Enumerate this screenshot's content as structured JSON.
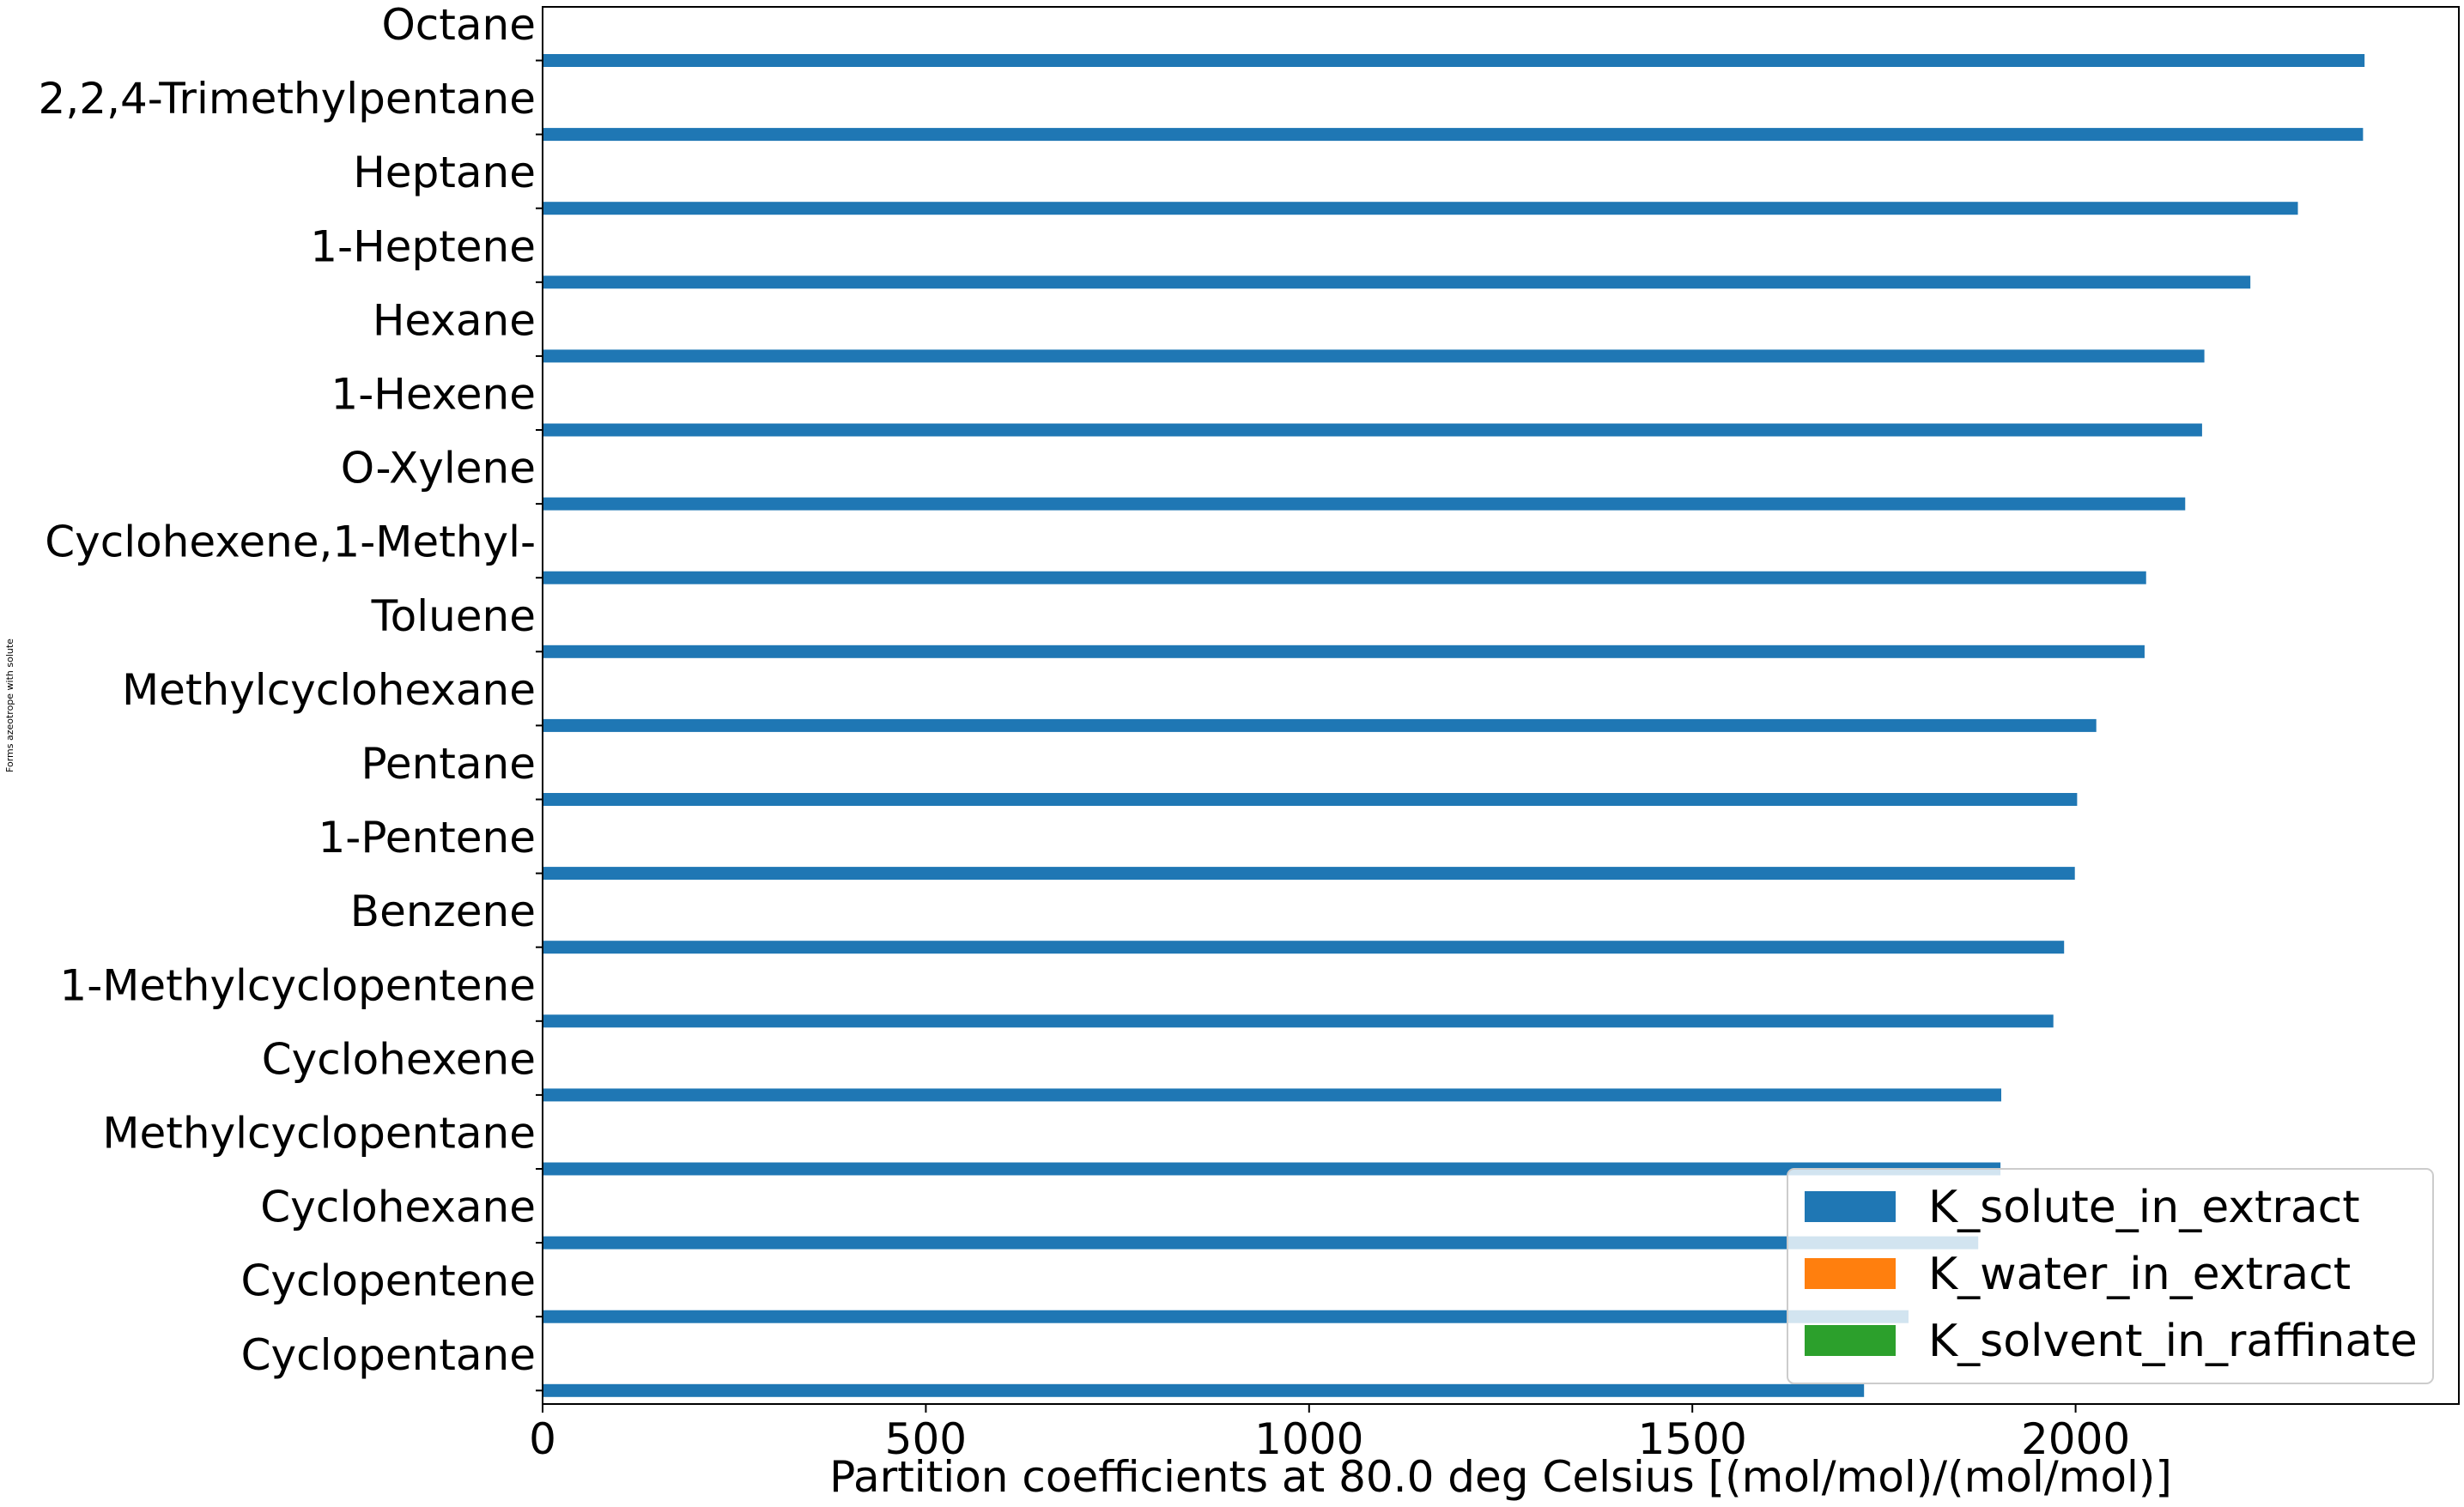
{
  "chart_data": {
    "type": "bar",
    "orientation": "horizontal",
    "title": "",
    "xlabel": "Partition coefficients at 80.0 deg Celsius [(mol/mol)/(mol/mol)]",
    "ylabel": "Forms azeotrope with solute",
    "xlim": [
      0,
      2500
    ],
    "xticks": [
      0,
      500,
      1000,
      1500,
      2000
    ],
    "grid": false,
    "legend_position": "lower-right",
    "categories": [
      "Octane",
      "2,2,4-Trimethylpentane",
      "Heptane",
      "1-Heptene",
      "Hexane",
      "1-Hexene",
      "O-Xylene",
      "Cyclohexene,1-Methyl-",
      "Toluene",
      "Methylcyclohexane",
      "Pentane",
      "1-Pentene",
      "Benzene",
      "1-Methylcyclopentene",
      "Cyclohexene",
      "Methylcyclopentane",
      "Cyclohexane",
      "Cyclopentene",
      "Cyclopentane"
    ],
    "series": [
      {
        "name": "K_solute_in_extract",
        "color": "#1f77b4",
        "values": [
          2377,
          2375,
          2290,
          2228,
          2168,
          2165,
          2143,
          2092,
          2090,
          2027,
          2002,
          1999,
          1985,
          1971,
          1903,
          1902,
          1873,
          1782,
          1724
        ]
      },
      {
        "name": "K_water_in_extract",
        "color": "#ff7f0e",
        "values": [
          0,
          0,
          0,
          0,
          0,
          0,
          0,
          0,
          0,
          0,
          0,
          0,
          0,
          0,
          0,
          0,
          0,
          0,
          0
        ]
      },
      {
        "name": "K_solvent_in_raffinate",
        "color": "#2ca02c",
        "values": [
          0,
          0,
          0,
          0,
          0,
          0,
          0,
          0,
          0,
          0,
          0,
          0,
          0,
          0,
          0,
          0,
          0,
          0,
          0
        ]
      }
    ]
  }
}
